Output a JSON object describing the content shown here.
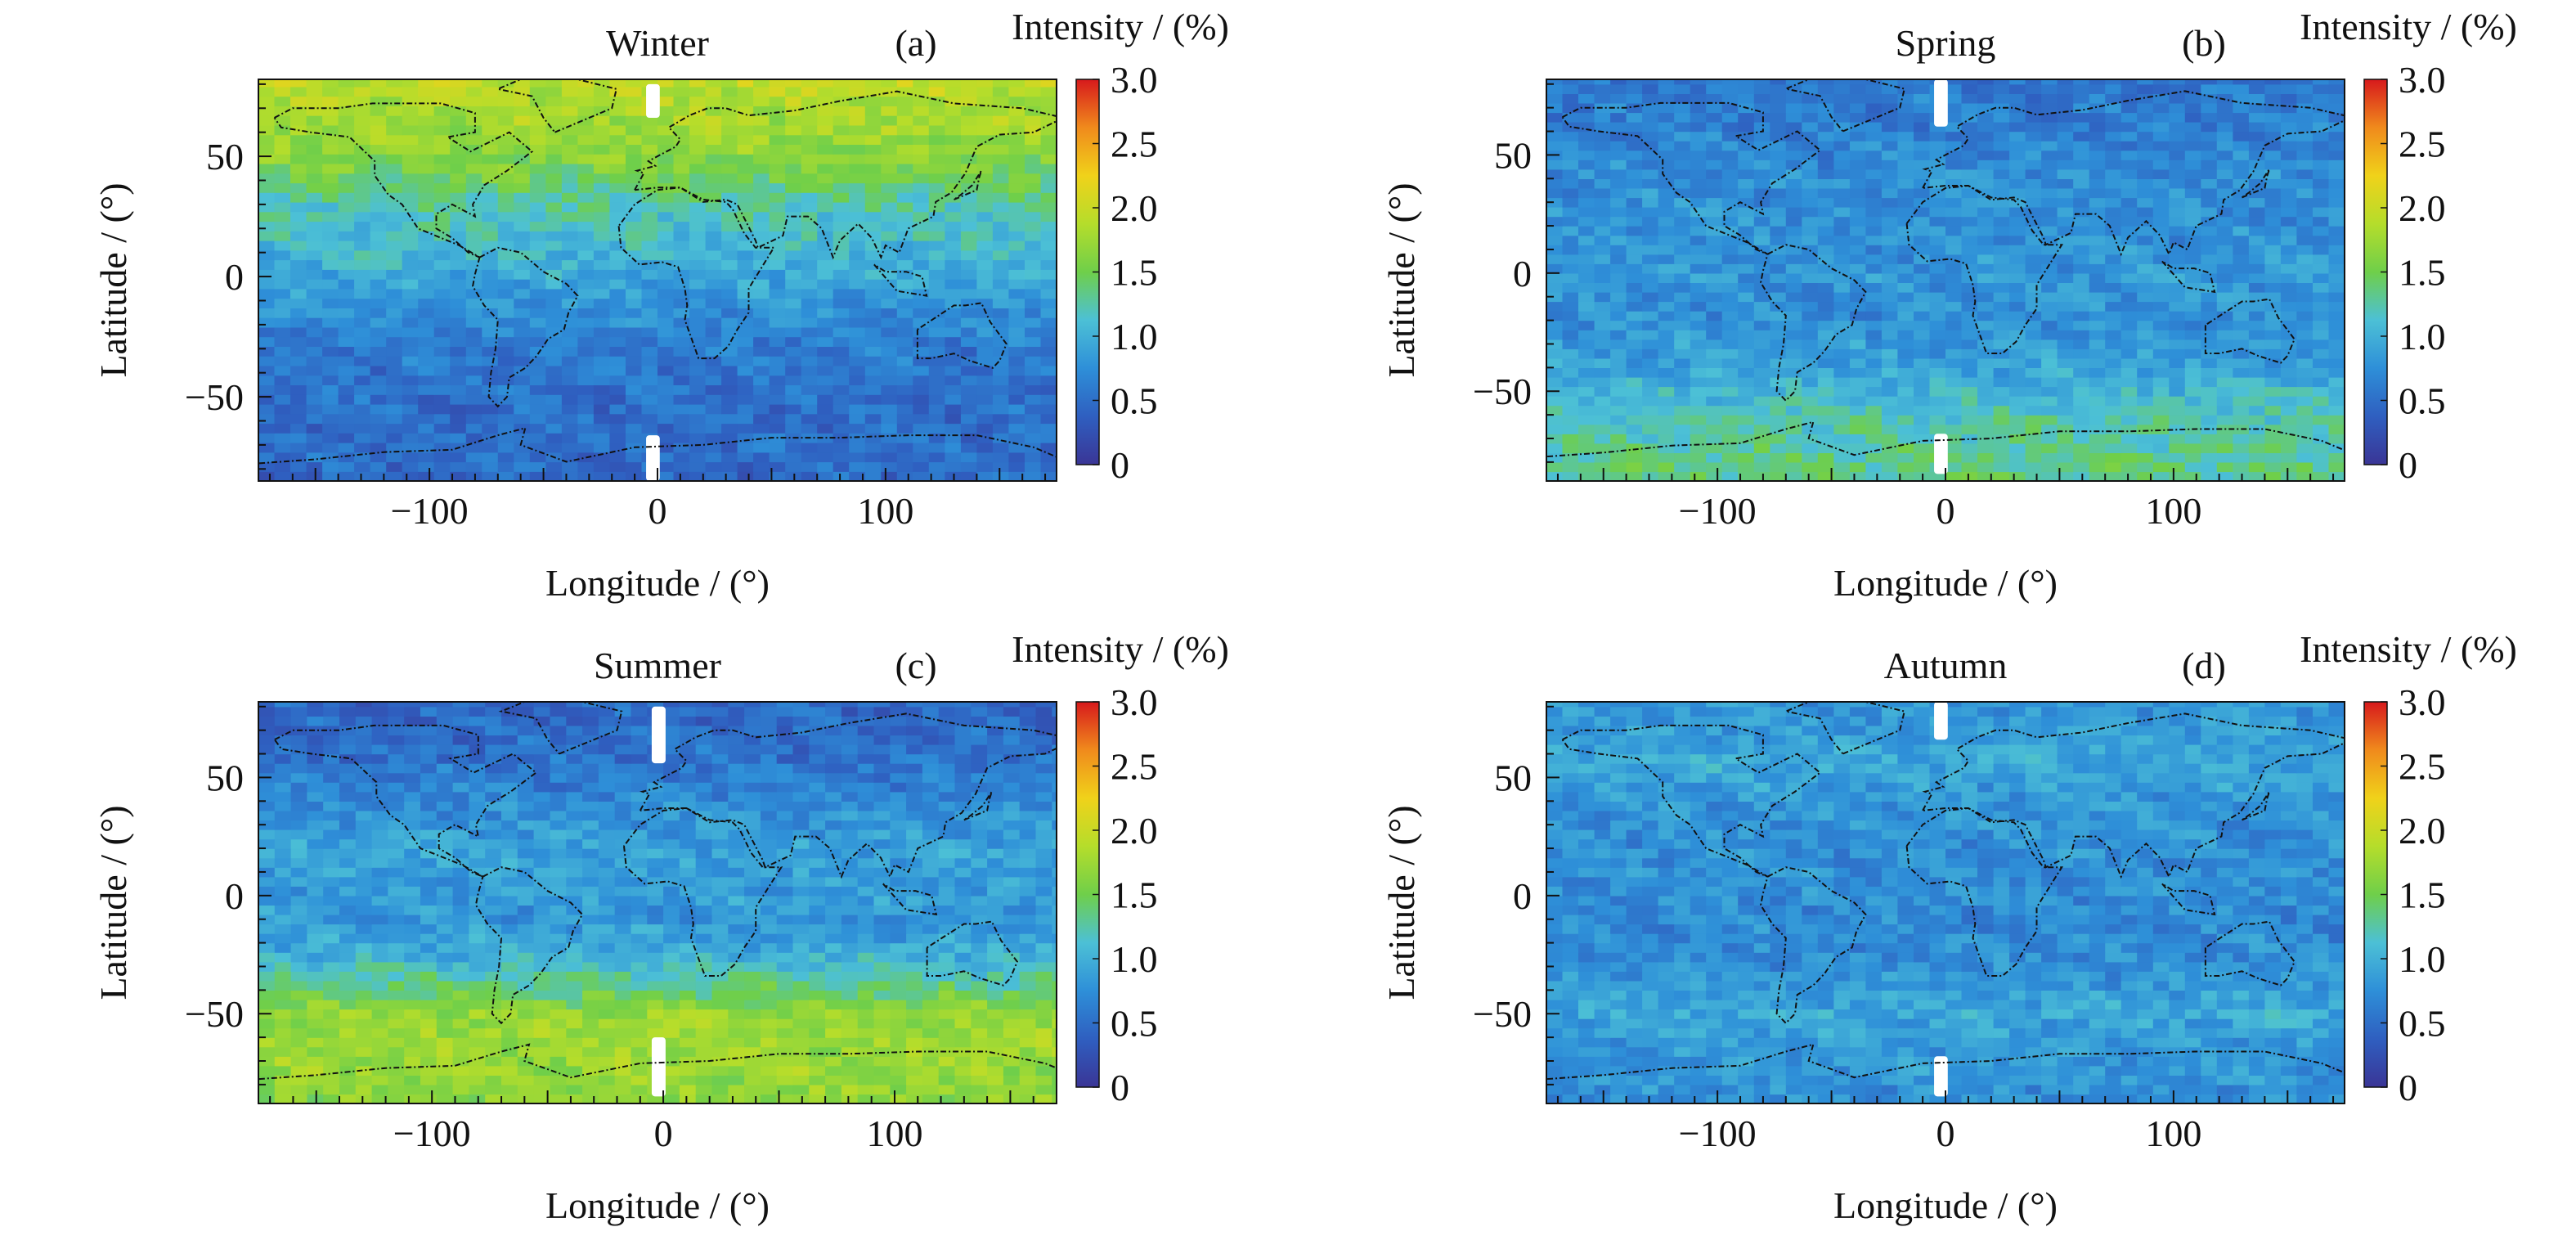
{
  "chart_data": [
    {
      "type": "heatmap",
      "panel": "a",
      "title": "Winter",
      "label": "(a)",
      "xlabel": "Longitude / (°)",
      "ylabel": "Latitude / (°)",
      "colorbar_label": "Intensity / (%)",
      "xticks": [
        "−100",
        "0",
        "100"
      ],
      "yticks": [
        "50",
        "0",
        "−50"
      ],
      "colorbar_ticks": [
        "3.0",
        "2.5",
        "2.0",
        "1.5",
        "1.0",
        "0.5",
        "0"
      ],
      "xlim": [
        -175,
        175
      ],
      "ylim": [
        -85,
        82
      ],
      "clim": [
        0,
        3.0
      ],
      "colormap": [
        "#3a3596",
        "#2f5fc0",
        "#2e8fd8",
        "#4cc0d6",
        "#6fcf4a",
        "#b5dd2b",
        "#f0d21a",
        "#f08a1c",
        "#d7191c"
      ],
      "latitude_profile": {
        "lat": [
          -85,
          -70,
          -50,
          -30,
          -15,
          0,
          15,
          30,
          45,
          60,
          75,
          82
        ],
        "intensity": [
          0.45,
          0.5,
          0.5,
          0.6,
          0.75,
          0.95,
          1.1,
          1.25,
          1.55,
          1.75,
          1.85,
          1.95
        ]
      },
      "data_gaps": [
        {
          "lon": -2,
          "lat": [
            66,
            80
          ]
        },
        {
          "lon": -2,
          "lat": [
            -85,
            -66
          ]
        }
      ]
    },
    {
      "type": "heatmap",
      "panel": "b",
      "title": "Spring",
      "label": "(b)",
      "xlabel": "Longitude / (°)",
      "ylabel": "Latitude / (°)",
      "colorbar_label": "Intensity / (%)",
      "xticks": [
        "−100",
        "0",
        "100"
      ],
      "yticks": [
        "50",
        "0",
        "−50"
      ],
      "colorbar_ticks": [
        "3.0",
        "2.5",
        "2.0",
        "1.5",
        "1.0",
        "0.5",
        "0"
      ],
      "xlim": [
        -175,
        175
      ],
      "ylim": [
        -88,
        82
      ],
      "clim": [
        0,
        3.0
      ],
      "colormap": [
        "#3a3596",
        "#2f5fc0",
        "#2e8fd8",
        "#4cc0d6",
        "#6fcf4a",
        "#b5dd2b",
        "#f0d21a",
        "#f08a1c",
        "#d7191c"
      ],
      "latitude_profile": {
        "lat": [
          -88,
          -75,
          -60,
          -50,
          -40,
          -20,
          0,
          20,
          40,
          60,
          75,
          82
        ],
        "intensity": [
          1.35,
          1.3,
          1.2,
          1.05,
          0.9,
          0.75,
          0.8,
          0.75,
          0.75,
          0.65,
          0.6,
          0.55
        ]
      },
      "data_gaps": [
        {
          "lon": -2,
          "lat": [
            62,
            82
          ]
        },
        {
          "lon": -2,
          "lat": [
            -85,
            -68
          ]
        }
      ]
    },
    {
      "type": "heatmap",
      "panel": "c",
      "title": "Summer",
      "label": "(c)",
      "xlabel": "Longitude / (°)",
      "ylabel": "Latitude / (°)",
      "colorbar_label": "Intensity / (%)",
      "xticks": [
        "−100",
        "0",
        "100"
      ],
      "yticks": [
        "50",
        "0",
        "−50"
      ],
      "colorbar_ticks": [
        "3.0",
        "2.5",
        "2.0",
        "1.5",
        "1.0",
        "0.5",
        "0"
      ],
      "xlim": [
        -175,
        170
      ],
      "ylim": [
        -88,
        82
      ],
      "clim": [
        0,
        3.0
      ],
      "colormap": [
        "#3a3596",
        "#2f5fc0",
        "#2e8fd8",
        "#4cc0d6",
        "#6fcf4a",
        "#b5dd2b",
        "#f0d21a",
        "#f08a1c",
        "#d7191c"
      ],
      "latitude_profile": {
        "lat": [
          -88,
          -75,
          -60,
          -50,
          -40,
          -25,
          -10,
          0,
          20,
          40,
          60,
          82
        ],
        "intensity": [
          1.65,
          1.7,
          1.75,
          1.7,
          1.4,
          1.0,
          0.8,
          0.85,
          0.9,
          0.7,
          0.5,
          0.45
        ]
      },
      "data_gaps": [
        {
          "lon": -2,
          "lat": [
            56,
            80
          ]
        },
        {
          "lon": -2,
          "lat": [
            -85,
            -60
          ]
        }
      ]
    },
    {
      "type": "heatmap",
      "panel": "d",
      "title": "Autumn",
      "label": "(d)",
      "xlabel": "Longitude / (°)",
      "ylabel": "Latitude / (°)",
      "colorbar_label": "Intensity / (%)",
      "xticks": [
        "−100",
        "0",
        "100"
      ],
      "yticks": [
        "50",
        "0",
        "−50"
      ],
      "colorbar_ticks": [
        "3.0",
        "2.5",
        "2.0",
        "1.5",
        "1.0",
        "0.5",
        "0"
      ],
      "xlim": [
        -175,
        175
      ],
      "ylim": [
        -88,
        82
      ],
      "clim": [
        0,
        3.0
      ],
      "colormap": [
        "#3a3596",
        "#2f5fc0",
        "#2e8fd8",
        "#4cc0d6",
        "#6fcf4a",
        "#b5dd2b",
        "#f0d21a",
        "#f08a1c",
        "#d7191c"
      ],
      "latitude_profile": {
        "lat": [
          -88,
          -75,
          -60,
          -50,
          -30,
          -10,
          0,
          20,
          40,
          55,
          70,
          82
        ],
        "intensity": [
          0.75,
          0.8,
          0.85,
          0.95,
          0.75,
          0.7,
          0.75,
          0.75,
          0.8,
          0.95,
          0.85,
          0.8
        ]
      },
      "data_gaps": [
        {
          "lon": -2,
          "lat": [
            66,
            82
          ]
        },
        {
          "lon": -2,
          "lat": [
            -85,
            -68
          ]
        }
      ]
    }
  ]
}
